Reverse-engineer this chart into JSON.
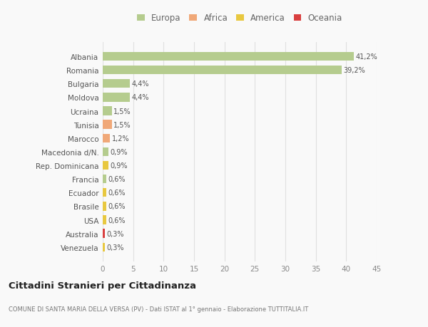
{
  "categories": [
    "Albania",
    "Romania",
    "Bulgaria",
    "Moldova",
    "Ucraina",
    "Tunisia",
    "Marocco",
    "Macedonia d/N.",
    "Rep. Dominicana",
    "Francia",
    "Ecuador",
    "Brasile",
    "USA",
    "Australia",
    "Venezuela"
  ],
  "values": [
    41.2,
    39.2,
    4.4,
    4.4,
    1.5,
    1.5,
    1.2,
    0.9,
    0.9,
    0.6,
    0.6,
    0.6,
    0.6,
    0.3,
    0.3
  ],
  "labels": [
    "41,2%",
    "39,2%",
    "4,4%",
    "4,4%",
    "1,5%",
    "1,5%",
    "1,2%",
    "0,9%",
    "0,9%",
    "0,6%",
    "0,6%",
    "0,6%",
    "0,6%",
    "0,3%",
    "0,3%"
  ],
  "continents": [
    "Europa",
    "Europa",
    "Europa",
    "Europa",
    "Europa",
    "Africa",
    "Africa",
    "Europa",
    "America",
    "Europa",
    "America",
    "America",
    "America",
    "Oceania",
    "America"
  ],
  "colors": {
    "Europa": "#b5cc8e",
    "Africa": "#f0a878",
    "America": "#e8c840",
    "Oceania": "#d94040"
  },
  "legend_order": [
    "Europa",
    "Africa",
    "America",
    "Oceania"
  ],
  "title": "Cittadini Stranieri per Cittadinanza",
  "subtitle": "COMUNE DI SANTA MARIA DELLA VERSA (PV) - Dati ISTAT al 1° gennaio - Elaborazione TUTTITALIA.IT",
  "xlim": [
    0,
    45
  ],
  "xticks": [
    0,
    5,
    10,
    15,
    20,
    25,
    30,
    35,
    40,
    45
  ],
  "background_color": "#f9f9f9",
  "grid_color": "#e0e0e0"
}
